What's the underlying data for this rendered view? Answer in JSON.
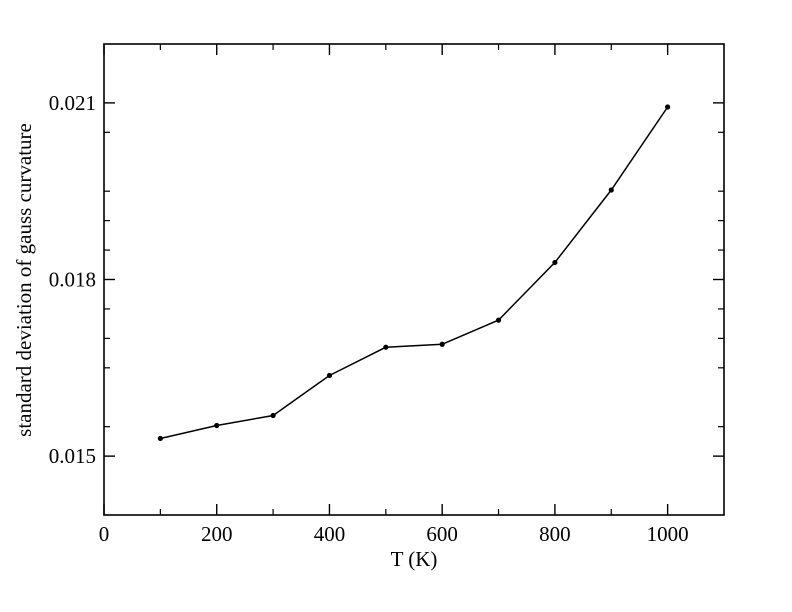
{
  "chart_data": {
    "type": "line",
    "title": "",
    "xlabel": "T (K)",
    "ylabel": "standard deviation of gauss curvature",
    "xlim": [
      0,
      1100
    ],
    "ylim": [
      0.014,
      0.022
    ],
    "x_ticks": [
      0,
      200,
      400,
      600,
      800,
      1000
    ],
    "x_tick_labels": [
      "0",
      "200",
      "400",
      "600",
      "800",
      "1000"
    ],
    "x_minor_ticks": [
      100,
      300,
      500,
      700,
      900
    ],
    "y_ticks": [
      0.015,
      0.018,
      0.021
    ],
    "y_tick_labels": [
      "0.015",
      "0.018",
      "0.021"
    ],
    "y_minor_ticks": [
      0.0155,
      0.0165,
      0.017,
      0.0175,
      0.0185,
      0.019,
      0.0195,
      0.0205
    ],
    "grid": false,
    "legend": "none",
    "series": [
      {
        "x": [
          100,
          200,
          300,
          400,
          500,
          600,
          700,
          800,
          900,
          1000
        ],
        "y": [
          0.0153,
          0.01552,
          0.01569,
          0.01637,
          0.01685,
          0.0169,
          0.01731,
          0.01829,
          0.01952,
          0.02093
        ],
        "color": "#000000"
      }
    ]
  }
}
